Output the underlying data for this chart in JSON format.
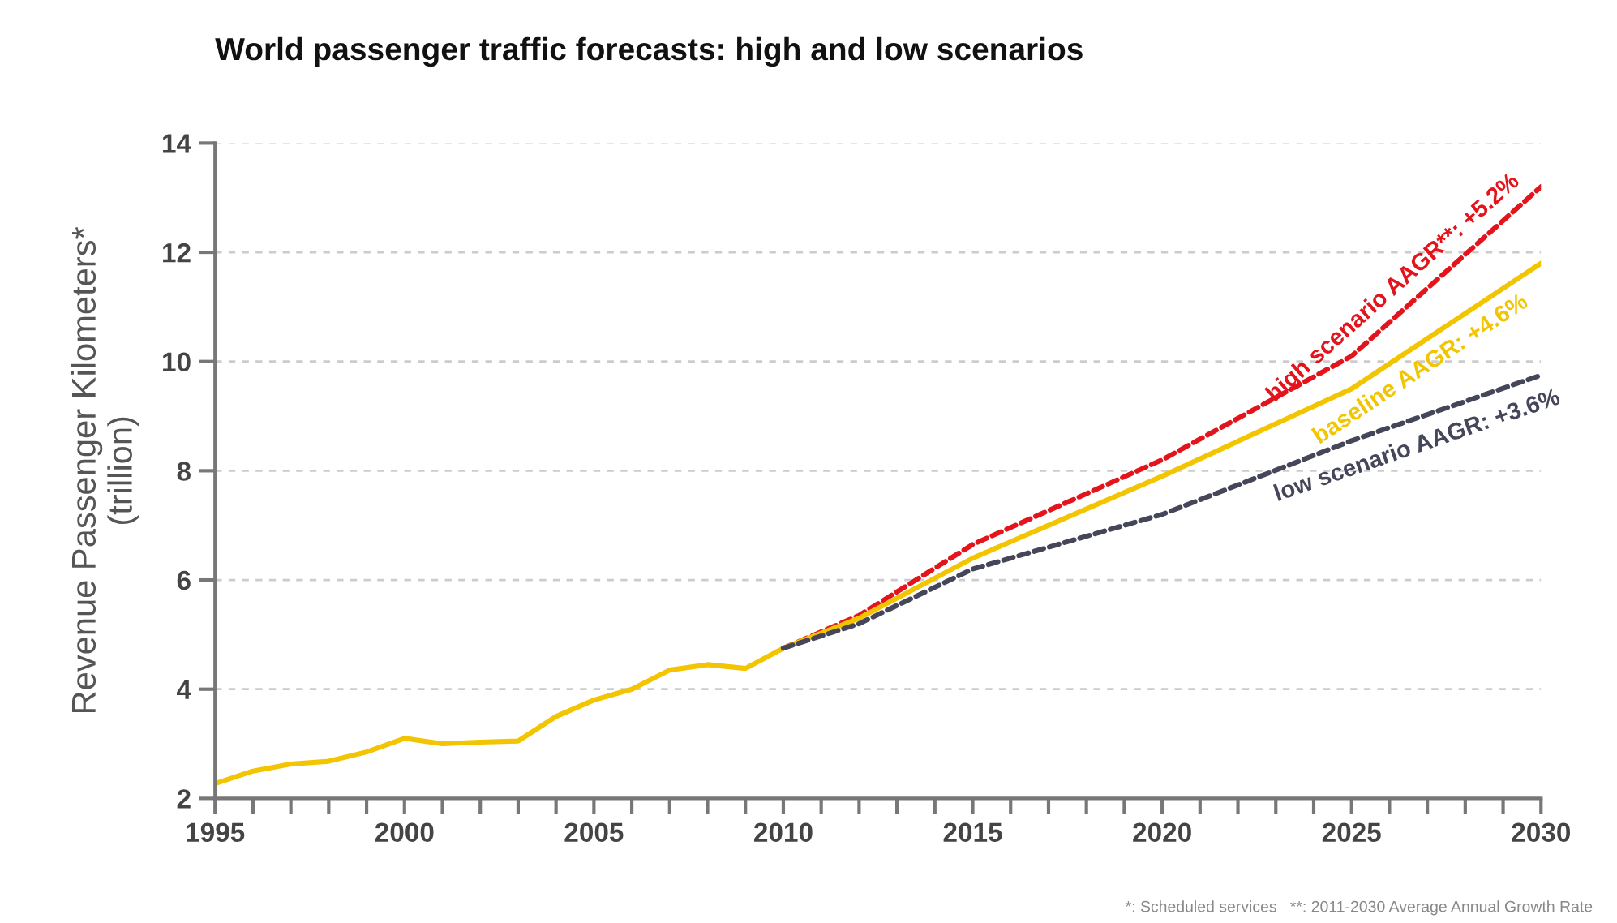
{
  "chart_data": {
    "type": "line",
    "title": "World passenger traffic forecasts: high and low scenarios",
    "ylabel": "Revenue Passenger Kilometers*\n(trillion)",
    "series": [
      {
        "name": "high scenario AAGR**: +5.2%",
        "color": "#e3141c",
        "line_style": "dashed",
        "x": [
          2010,
          2012,
          2015,
          2020,
          2025,
          2030
        ],
        "values": [
          4.75,
          5.35,
          6.65,
          8.2,
          10.1,
          13.2
        ]
      },
      {
        "name": "baseline AAGR: +4.6%",
        "color": "#f2c500",
        "line_style": "solid",
        "x": [
          1995,
          1996,
          1997,
          1998,
          1999,
          2000,
          2001,
          2002,
          2003,
          2004,
          2005,
          2006,
          2007,
          2008,
          2009,
          2010,
          2012,
          2015,
          2020,
          2025,
          2030
        ],
        "values": [
          2.27,
          2.5,
          2.63,
          2.68,
          2.85,
          3.1,
          3.0,
          3.03,
          3.05,
          3.5,
          3.8,
          4.0,
          4.35,
          4.45,
          4.38,
          4.75,
          5.3,
          6.4,
          7.9,
          9.5,
          11.8
        ]
      },
      {
        "name": "low scenario AAGR: +3.6%",
        "color": "#45465a",
        "line_style": "dashed",
        "x": [
          2010,
          2012,
          2015,
          2020,
          2025,
          2030
        ],
        "values": [
          4.75,
          5.2,
          6.2,
          7.2,
          8.55,
          9.75
        ]
      }
    ],
    "xlim": [
      1995,
      2030
    ],
    "ylim": [
      2,
      14
    ],
    "xticks": [
      1995,
      {
        "value": 1996,
        "label": null
      },
      {
        "value": 1997,
        "label": null
      },
      {
        "value": 1998,
        "label": null
      },
      {
        "value": 1999,
        "label": null
      },
      2000,
      {
        "value": 2001,
        "label": null
      },
      {
        "value": 2002,
        "label": null
      },
      {
        "value": 2003,
        "label": null
      },
      {
        "value": 2004,
        "label": null
      },
      2005,
      {
        "value": 2006,
        "label": null
      },
      {
        "value": 2007,
        "label": null
      },
      {
        "value": 2008,
        "label": null
      },
      {
        "value": 2009,
        "label": null
      },
      2010,
      {
        "value": 2011,
        "label": null
      },
      {
        "value": 2012,
        "label": null
      },
      {
        "value": 2013,
        "label": null
      },
      {
        "value": 2014,
        "label": null
      },
      2015,
      {
        "value": 2016,
        "label": null
      },
      {
        "value": 2017,
        "label": null
      },
      {
        "value": 2018,
        "label": null
      },
      {
        "value": 2019,
        "label": null
      },
      2020,
      {
        "value": 2021,
        "label": null
      },
      {
        "value": 2022,
        "label": null
      },
      {
        "value": 2023,
        "label": null
      },
      {
        "value": 2024,
        "label": null
      },
      2025,
      {
        "value": 2026,
        "label": null
      },
      {
        "value": 2027,
        "label": null
      },
      {
        "value": 2028,
        "label": null
      },
      {
        "value": 2029,
        "label": null
      },
      2030
    ],
    "yticks": [
      2,
      4,
      6,
      8,
      10,
      12,
      14
    ],
    "grid": "y",
    "legend": false,
    "annotations": [
      "*: Scheduled services   **: 2011-2030 Average Annual Growth Rate"
    ]
  }
}
